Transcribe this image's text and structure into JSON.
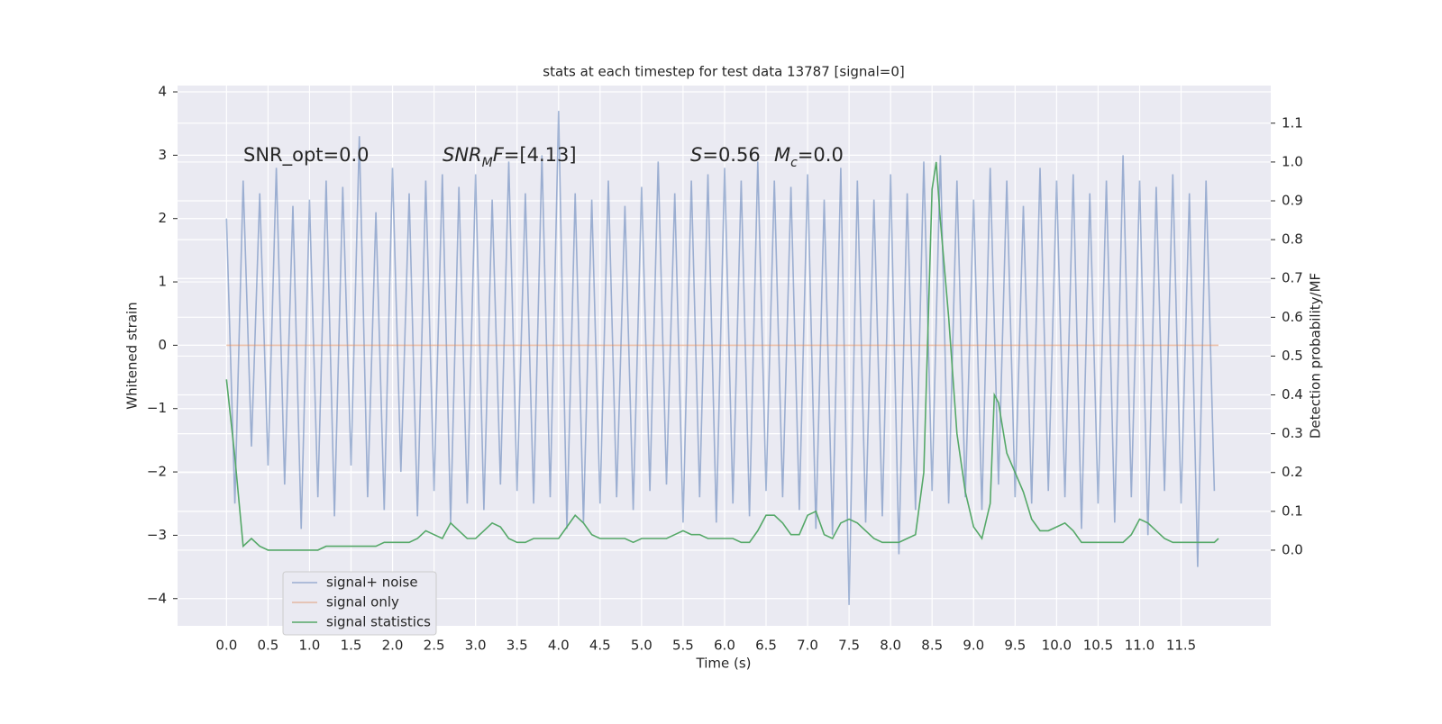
{
  "chart_data": {
    "type": "line",
    "title": "stats at each timestep for test data 13787 [signal=0]",
    "xlabel": "Time (s)",
    "ylabel": "Whitened strain",
    "y2label": "Detection probability/MF",
    "grid": true,
    "legend": "lower left",
    "xlim": [
      -0.59,
      12.58
    ],
    "ylim": [
      -4.43,
      4.1
    ],
    "y2lim": [
      -0.195,
      1.197
    ],
    "xticks": [
      {
        "value": 0,
        "label": "0.0"
      },
      {
        "value": 0.5,
        "label": "0.5"
      },
      {
        "value": 1,
        "label": "1.0"
      },
      {
        "value": 1.5,
        "label": "1.5"
      },
      {
        "value": 2,
        "label": "2.0"
      },
      {
        "value": 2.5,
        "label": "2.5"
      },
      {
        "value": 3,
        "label": "3.0"
      },
      {
        "value": 3.5,
        "label": "3.5"
      },
      {
        "value": 4,
        "label": "4.0"
      },
      {
        "value": 4.5,
        "label": "4.5"
      },
      {
        "value": 5,
        "label": "5.0"
      },
      {
        "value": 5.5,
        "label": "5.5"
      },
      {
        "value": 6,
        "label": "6.0"
      },
      {
        "value": 6.5,
        "label": "6.5"
      },
      {
        "value": 7,
        "label": "7.0"
      },
      {
        "value": 7.5,
        "label": "7.5"
      },
      {
        "value": 8,
        "label": "8.0"
      },
      {
        "value": 8.5,
        "label": "8.5"
      },
      {
        "value": 9,
        "label": "9.0"
      },
      {
        "value": 9.5,
        "label": "9.5"
      },
      {
        "value": 10,
        "label": "10.0"
      },
      {
        "value": 10.5,
        "label": "10.5"
      },
      {
        "value": 11,
        "label": "11.0"
      },
      {
        "value": 11.5,
        "label": "11.5"
      }
    ],
    "yticks": [
      {
        "value": -4,
        "label": "−4"
      },
      {
        "value": -3,
        "label": "−3"
      },
      {
        "value": -2,
        "label": "−2"
      },
      {
        "value": -1,
        "label": "−1"
      },
      0,
      1,
      2,
      3,
      4
    ],
    "y2ticks": [
      {
        "value": 0,
        "label": "0.0"
      },
      {
        "value": 0.1,
        "label": "0.1"
      },
      {
        "value": 0.2,
        "label": "0.2"
      },
      {
        "value": 0.3,
        "label": "0.3"
      },
      {
        "value": 0.4,
        "label": "0.4"
      },
      {
        "value": 0.5,
        "label": "0.5"
      },
      {
        "value": 0.6,
        "label": "0.6"
      },
      {
        "value": 0.7,
        "label": "0.7"
      },
      {
        "value": 0.8,
        "label": "0.8"
      },
      {
        "value": 0.9,
        "label": "0.9"
      },
      {
        "value": 1,
        "label": "1.0"
      },
      {
        "value": 1.1,
        "label": "1.1"
      }
    ],
    "annotations": [
      [
        {
          "text": "SNR_opt=0.0",
          "style": "normal"
        }
      ],
      [
        {
          "text": "SNR",
          "style": "italic"
        },
        {
          "text": "M",
          "style": "sub"
        },
        {
          "text": "F",
          "style": "italic"
        },
        {
          "text": "=[4.13]",
          "style": "normal"
        }
      ],
      [
        {
          "text": "S",
          "style": "italic"
        },
        {
          "text": "=0.56",
          "style": "normal"
        }
      ],
      [
        {
          "text": "M",
          "style": "italic"
        },
        {
          "text": "c",
          "style": "sub"
        },
        {
          "text": "=0.0",
          "style": "normal"
        }
      ]
    ],
    "series": [
      {
        "name": "signal+ noise",
        "color": "#4c72b0",
        "opacity": 0.5,
        "axis": "y",
        "x": [
          0,
          0.1,
          0.2,
          0.3,
          0.4,
          0.5,
          0.6,
          0.7,
          0.8,
          0.9,
          1,
          1.1,
          1.2,
          1.3,
          1.4,
          1.5,
          1.6,
          1.7,
          1.8,
          1.9,
          2,
          2.1,
          2.2,
          2.3,
          2.4,
          2.5,
          2.6,
          2.7,
          2.8,
          2.9,
          3,
          3.1,
          3.2,
          3.3,
          3.4,
          3.5,
          3.6,
          3.7,
          3.8,
          3.9,
          4,
          4.1,
          4.2,
          4.3,
          4.4,
          4.5,
          4.6,
          4.7,
          4.8,
          4.9,
          5,
          5.1,
          5.2,
          5.3,
          5.4,
          5.5,
          5.6,
          5.7,
          5.8,
          5.9,
          6,
          6.1,
          6.2,
          6.3,
          6.4,
          6.5,
          6.6,
          6.7,
          6.8,
          6.9,
          7,
          7.1,
          7.2,
          7.3,
          7.4,
          7.5,
          7.6,
          7.7,
          7.8,
          7.9,
          8,
          8.1,
          8.2,
          8.3,
          8.4,
          8.5,
          8.6,
          8.7,
          8.8,
          8.9,
          9,
          9.1,
          9.2,
          9.3,
          9.4,
          9.5,
          9.6,
          9.7,
          9.8,
          9.9,
          10,
          10.1,
          10.2,
          10.3,
          10.4,
          10.5,
          10.6,
          10.7,
          10.8,
          10.9,
          11,
          11.1,
          11.2,
          11.3,
          11.4,
          11.5,
          11.6,
          11.7,
          11.8,
          11.9
        ],
        "values": [
          2.0,
          -2.5,
          2.6,
          -1.6,
          2.4,
          -1.9,
          2.8,
          -2.2,
          2.2,
          -2.9,
          2.3,
          -2.4,
          2.6,
          -2.7,
          2.5,
          -1.9,
          3.3,
          -2.4,
          2.1,
          -2.6,
          2.8,
          -2.0,
          2.4,
          -2.7,
          2.6,
          -2.3,
          2.7,
          -2.8,
          2.5,
          -2.5,
          2.7,
          -2.6,
          2.3,
          -2.2,
          2.9,
          -2.3,
          2.4,
          -2.5,
          3.0,
          -2.4,
          3.7,
          -2.9,
          2.4,
          -2.8,
          2.3,
          -2.5,
          2.6,
          -2.4,
          2.2,
          -2.6,
          2.5,
          -2.3,
          2.9,
          -2.2,
          2.4,
          -2.8,
          2.6,
          -2.4,
          2.7,
          -2.8,
          2.8,
          -2.5,
          2.6,
          -2.7,
          2.9,
          -2.3,
          2.6,
          -2.4,
          2.5,
          -2.6,
          2.7,
          -2.9,
          2.3,
          -3.0,
          2.8,
          -4.1,
          2.6,
          -2.8,
          2.3,
          -2.7,
          2.7,
          -3.3,
          2.4,
          -2.6,
          2.9,
          -2.3,
          3.0,
          -2.5,
          2.6,
          -2.4,
          2.3,
          -2.6,
          2.8,
          -2.2,
          2.6,
          -2.4,
          2.2,
          -2.5,
          2.8,
          -2.3,
          2.6,
          -2.4,
          2.7,
          -2.9,
          2.4,
          -2.5,
          2.6,
          -2.8,
          3.0,
          -2.4,
          2.6,
          -3.0,
          2.5,
          -2.3,
          2.7,
          -2.5,
          2.4,
          -3.5,
          2.6,
          -2.3
        ]
      },
      {
        "name": "signal only",
        "color": "#dd8452",
        "opacity": 0.5,
        "axis": "y",
        "x": [
          0,
          11.95
        ],
        "values": [
          0,
          0
        ]
      },
      {
        "name": "signal statistics",
        "color": "#55a868",
        "opacity": 1,
        "axis": "y2",
        "x": [
          0,
          0.1,
          0.2,
          0.3,
          0.4,
          0.5,
          0.6,
          0.7,
          0.8,
          0.9,
          1,
          1.1,
          1.2,
          1.3,
          1.4,
          1.5,
          1.6,
          1.7,
          1.8,
          1.9,
          2,
          2.1,
          2.2,
          2.3,
          2.4,
          2.5,
          2.6,
          2.7,
          2.8,
          2.9,
          3,
          3.1,
          3.2,
          3.3,
          3.4,
          3.5,
          3.6,
          3.7,
          3.8,
          3.9,
          4,
          4.1,
          4.2,
          4.3,
          4.4,
          4.5,
          4.6,
          4.7,
          4.8,
          4.9,
          5,
          5.1,
          5.2,
          5.3,
          5.4,
          5.5,
          5.6,
          5.7,
          5.8,
          5.9,
          6,
          6.1,
          6.2,
          6.3,
          6.4,
          6.5,
          6.6,
          6.7,
          6.8,
          6.9,
          7,
          7.1,
          7.2,
          7.3,
          7.4,
          7.5,
          7.6,
          7.7,
          7.8,
          7.9,
          8,
          8.1,
          8.2,
          8.3,
          8.4,
          8.5,
          8.55,
          8.6,
          8.7,
          8.8,
          8.9,
          9,
          9.1,
          9.2,
          9.25,
          9.3,
          9.4,
          9.5,
          9.6,
          9.7,
          9.8,
          9.9,
          10,
          10.1,
          10.2,
          10.3,
          10.4,
          10.5,
          10.6,
          10.7,
          10.8,
          10.9,
          11,
          11.1,
          11.2,
          11.3,
          11.4,
          11.5,
          11.6,
          11.7,
          11.8,
          11.9,
          11.95
        ],
        "values": [
          0.44,
          0.24,
          0.01,
          0.03,
          0.01,
          0.0,
          0.0,
          0.0,
          0.0,
          0.0,
          0.0,
          0.0,
          0.01,
          0.01,
          0.01,
          0.01,
          0.01,
          0.01,
          0.01,
          0.02,
          0.02,
          0.02,
          0.02,
          0.03,
          0.05,
          0.04,
          0.03,
          0.07,
          0.05,
          0.03,
          0.03,
          0.05,
          0.07,
          0.06,
          0.03,
          0.02,
          0.02,
          0.03,
          0.03,
          0.03,
          0.03,
          0.06,
          0.09,
          0.07,
          0.04,
          0.03,
          0.03,
          0.03,
          0.03,
          0.02,
          0.03,
          0.03,
          0.03,
          0.03,
          0.04,
          0.05,
          0.04,
          0.04,
          0.03,
          0.03,
          0.03,
          0.03,
          0.02,
          0.02,
          0.05,
          0.09,
          0.09,
          0.07,
          0.04,
          0.04,
          0.09,
          0.1,
          0.04,
          0.03,
          0.07,
          0.08,
          0.07,
          0.05,
          0.03,
          0.02,
          0.02,
          0.02,
          0.03,
          0.04,
          0.2,
          0.93,
          1.0,
          0.85,
          0.6,
          0.3,
          0.15,
          0.06,
          0.03,
          0.12,
          0.4,
          0.38,
          0.25,
          0.2,
          0.15,
          0.08,
          0.05,
          0.05,
          0.06,
          0.07,
          0.05,
          0.02,
          0.02,
          0.02,
          0.02,
          0.02,
          0.02,
          0.04,
          0.08,
          0.07,
          0.05,
          0.03,
          0.02,
          0.02,
          0.02,
          0.02,
          0.02,
          0.02,
          0.03
        ]
      }
    ]
  }
}
